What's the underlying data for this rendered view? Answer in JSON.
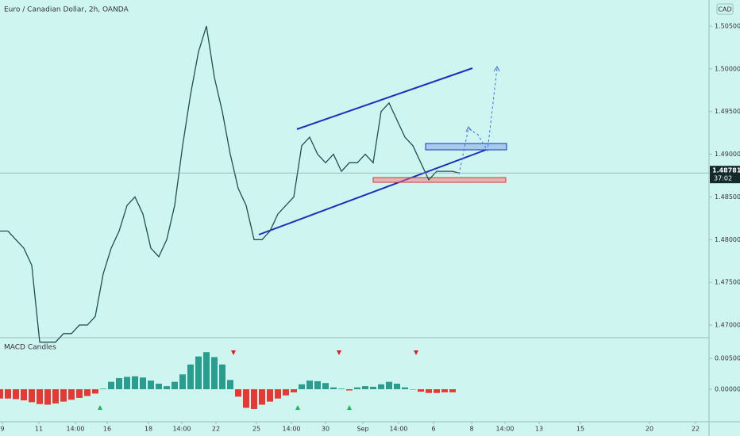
{
  "chart_data": [
    {
      "type": "line",
      "title": "Euro / Canadian Dollar, 2h, OANDA",
      "currency": "CAD",
      "color": "#1f4f4f",
      "x": [
        0,
        1,
        2,
        3,
        4,
        5,
        6,
        7,
        8,
        9,
        10,
        11,
        12,
        13,
        14,
        15,
        16,
        17,
        18,
        19,
        20,
        21,
        22,
        23,
        24,
        25,
        26,
        27,
        28,
        29,
        30,
        31,
        32,
        33,
        34,
        35,
        36,
        37,
        38,
        39,
        40,
        41,
        42,
        43,
        44,
        45,
        46,
        47,
        48,
        49,
        50,
        51,
        52,
        53,
        54,
        55,
        56,
        57,
        57.8
      ],
      "values": [
        1.481,
        1.481,
        1.48,
        1.479,
        1.477,
        1.468,
        1.468,
        1.468,
        1.469,
        1.469,
        1.47,
        1.47,
        1.471,
        1.476,
        1.479,
        1.481,
        1.484,
        1.485,
        1.483,
        1.479,
        1.478,
        1.48,
        1.484,
        1.491,
        1.497,
        1.502,
        1.505,
        1.499,
        1.495,
        1.49,
        1.486,
        1.484,
        1.48,
        1.48,
        1.481,
        1.483,
        1.484,
        1.485,
        1.491,
        1.492,
        1.49,
        1.489,
        1.49,
        1.488,
        1.489,
        1.489,
        1.49,
        1.489,
        1.495,
        1.496,
        1.494,
        1.492,
        1.491,
        1.489,
        1.487,
        1.488,
        1.488,
        1.488,
        1.4878
      ],
      "last_price": 1.48781,
      "countdown": "37:02",
      "last_price_color": "#132a2a",
      "xlim": [
        0,
        89.3
      ],
      "ylim": [
        1.46861,
        1.50806
      ],
      "yticks": [
        {
          "value": 1.47,
          "label": "1.47000"
        },
        {
          "value": 1.475,
          "label": "1.47500"
        },
        {
          "value": 1.48,
          "label": "1.48000"
        },
        {
          "value": 1.485,
          "label": "1.48500"
        },
        {
          "value": 1.49,
          "label": "1.49000"
        },
        {
          "value": 1.495,
          "label": "1.49500"
        },
        {
          "value": 1.5,
          "label": "1.50000"
        },
        {
          "value": 1.505,
          "label": "1.50500"
        }
      ],
      "xticks": [
        {
          "value": 0.3,
          "label": "9"
        },
        {
          "value": 4.9,
          "label": "11"
        },
        {
          "value": 9.5,
          "label": "14:00"
        },
        {
          "value": 13.5,
          "label": "16"
        },
        {
          "value": 18.7,
          "label": "18"
        },
        {
          "value": 22.9,
          "label": "14:00"
        },
        {
          "value": 27.2,
          "label": "22"
        },
        {
          "value": 32.3,
          "label": "25"
        },
        {
          "value": 36.7,
          "label": "14:00"
        },
        {
          "value": 41,
          "label": "30"
        },
        {
          "value": 45.7,
          "label": "Sep"
        },
        {
          "value": 50.2,
          "label": "14:00"
        },
        {
          "value": 54.6,
          "label": "6"
        },
        {
          "value": 59.4,
          "label": "8"
        },
        {
          "value": 63.6,
          "label": "14:00"
        },
        {
          "value": 67.9,
          "label": "13"
        },
        {
          "value": 73.1,
          "label": "15"
        },
        {
          "value": 81.8,
          "label": "20"
        },
        {
          "value": 87.6,
          "label": "22"
        }
      ]
    },
    {
      "type": "bar",
      "title": "MACD Candles",
      "positive_color": "#2a9d8f",
      "negative_color": "#e53935",
      "x": [
        0,
        1,
        2,
        3,
        4,
        5,
        6,
        7,
        8,
        9,
        10,
        11,
        12,
        13,
        14,
        15,
        16,
        17,
        18,
        19,
        20,
        21,
        22,
        23,
        24,
        25,
        26,
        27,
        28,
        29,
        30,
        31,
        32,
        33,
        34,
        35,
        36,
        37,
        38,
        39,
        40,
        41,
        42,
        43,
        44,
        45,
        46,
        47,
        48,
        49,
        50,
        51,
        52,
        53,
        54,
        55,
        56,
        57
      ],
      "values": [
        -0.0015,
        -0.0015,
        -0.0016,
        -0.0018,
        -0.0021,
        -0.0024,
        -0.0025,
        -0.0023,
        -0.002,
        -0.0017,
        -0.0014,
        -0.0011,
        -0.0007,
        0.0001,
        0.0012,
        0.0018,
        0.002,
        0.0021,
        0.0019,
        0.0014,
        0.0009,
        0.0005,
        0.0012,
        0.0024,
        0.004,
        0.0053,
        0.006,
        0.0052,
        0.004,
        0.0015,
        -0.0012,
        -0.003,
        -0.0032,
        -0.0025,
        -0.002,
        -0.0015,
        -0.001,
        -0.0005,
        0.0008,
        0.0014,
        0.0013,
        0.001,
        0.0003,
        0.0001,
        -0.0002,
        0.0003,
        0.0005,
        0.0004,
        0.0008,
        0.0012,
        0.0009,
        0.0003,
        0,
        -0.0004,
        -0.0006,
        -0.0006,
        -0.0005,
        -0.0005
      ],
      "ylim": [
        -0.005,
        0.00808
      ],
      "yticks": [
        {
          "value": 0,
          "label": "0.000000"
        },
        {
          "value": 0.005,
          "label": "0.005000"
        }
      ]
    }
  ]
}
